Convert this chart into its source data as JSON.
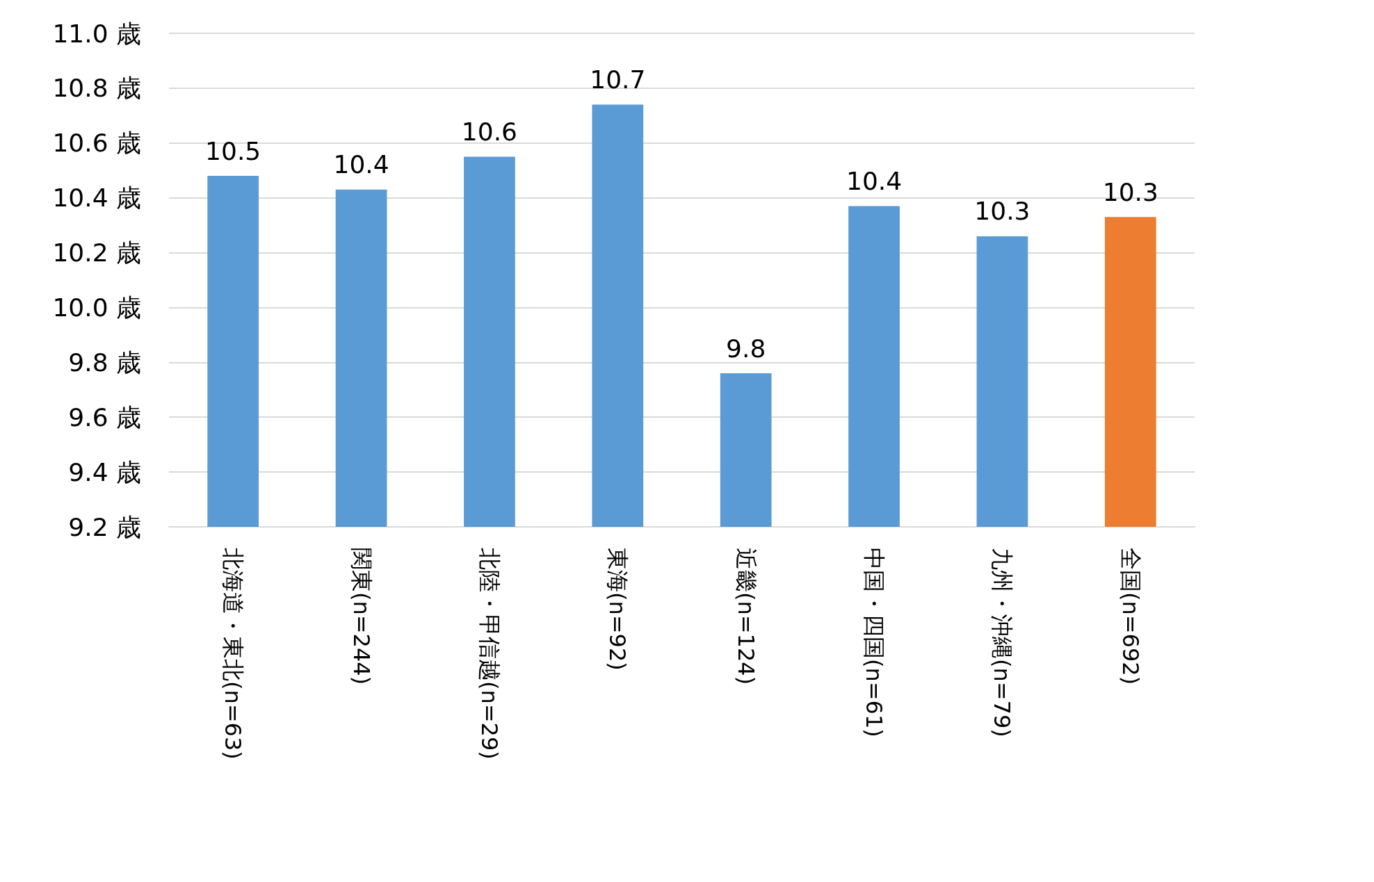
{
  "chart_data": {
    "type": "bar",
    "categories": [
      "北海道・東北(n=63)",
      "関東(n=244)",
      "北陸・甲信越(n=29)",
      "東海(n=92)",
      "近畿(n=124)",
      "中国・四国(n=61)",
      "九州・沖縄(n=79)",
      "全国(n=692)"
    ],
    "values": [
      10.48,
      10.43,
      10.55,
      10.74,
      9.76,
      10.37,
      10.26,
      10.33
    ],
    "value_labels": [
      "10.5",
      "10.4",
      "10.6",
      "10.7",
      "9.8",
      "10.4",
      "10.3",
      "10.3"
    ],
    "colors": [
      "#5b9bd5",
      "#5b9bd5",
      "#5b9bd5",
      "#5b9bd5",
      "#5b9bd5",
      "#5b9bd5",
      "#5b9bd5",
      "#ed7d31"
    ],
    "ylim": [
      9.2,
      11.0
    ],
    "yticks": [
      {
        "value": 9.2,
        "label": "9.2 歳"
      },
      {
        "value": 9.4,
        "label": "9.4 歳"
      },
      {
        "value": 9.6,
        "label": "9.6 歳"
      },
      {
        "value": 9.8,
        "label": "9.8 歳"
      },
      {
        "value": 10.0,
        "label": "10.0 歳"
      },
      {
        "value": 10.2,
        "label": "10.2 歳"
      },
      {
        "value": 10.4,
        "label": "10.4 歳"
      },
      {
        "value": 10.6,
        "label": "10.6 歳"
      },
      {
        "value": 10.8,
        "label": "10.8 歳"
      },
      {
        "value": 11.0,
        "label": "11.0 歳"
      }
    ],
    "grid": "y"
  }
}
